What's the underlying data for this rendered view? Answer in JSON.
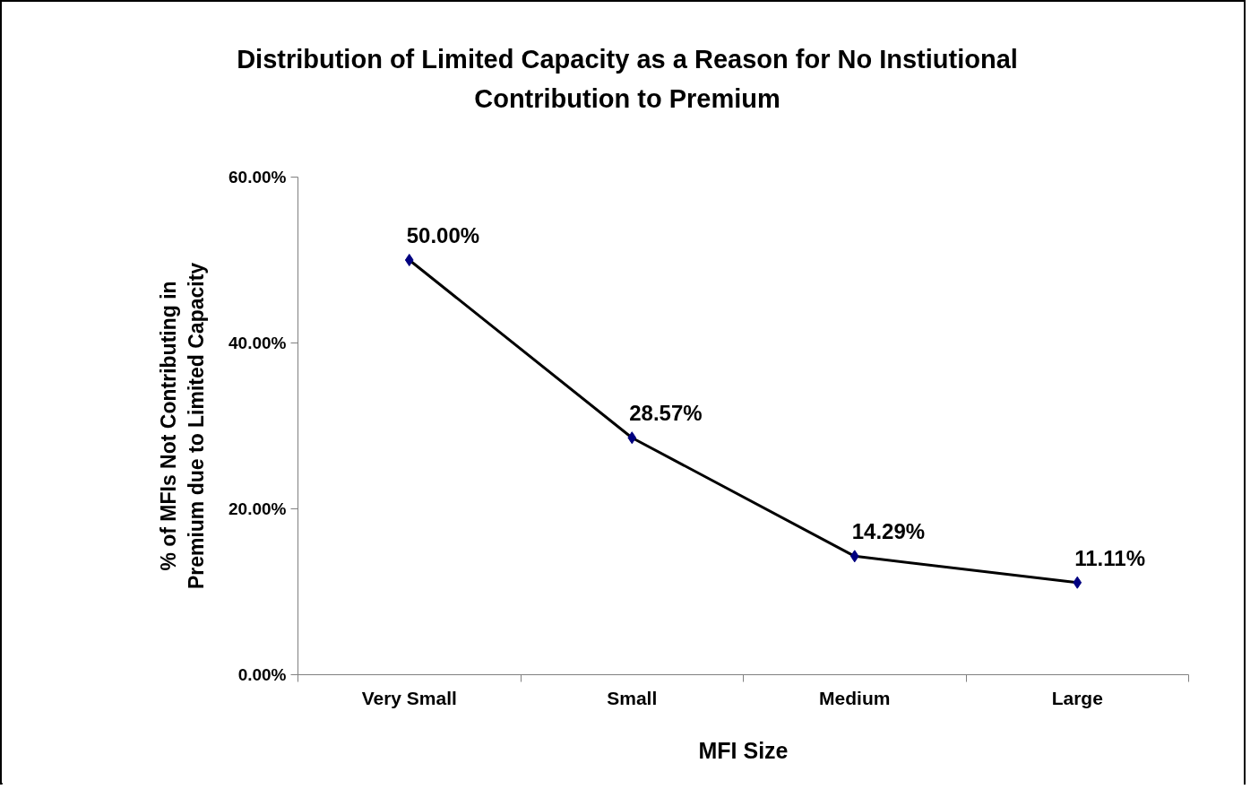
{
  "chart_data": {
    "type": "line",
    "title": "Distribution of Limited Capacity as a Reason for No Instiutional\nContribution to Premium",
    "xlabel": "MFI Size",
    "ylabel": "% of MFIs Not Contributing in\nPremium due to Limited Capacity",
    "categories": [
      "Very Small",
      "Small",
      "Medium",
      "Large"
    ],
    "series": [
      {
        "color": "#000080",
        "values": [
          50.0,
          28.57,
          14.29,
          11.11
        ],
        "value_labels": [
          "50.00%",
          "28.57%",
          "14.29%",
          "11.11%"
        ]
      }
    ],
    "ylim": [
      0,
      60
    ],
    "yticks": [
      {
        "value": 0,
        "label": "0.00%"
      },
      {
        "value": 20,
        "label": "20.00%"
      },
      {
        "value": 40,
        "label": "40.00%"
      },
      {
        "value": 60,
        "label": "60.00%"
      }
    ],
    "grid": false,
    "marker": "diamond",
    "line_style": "solid"
  }
}
